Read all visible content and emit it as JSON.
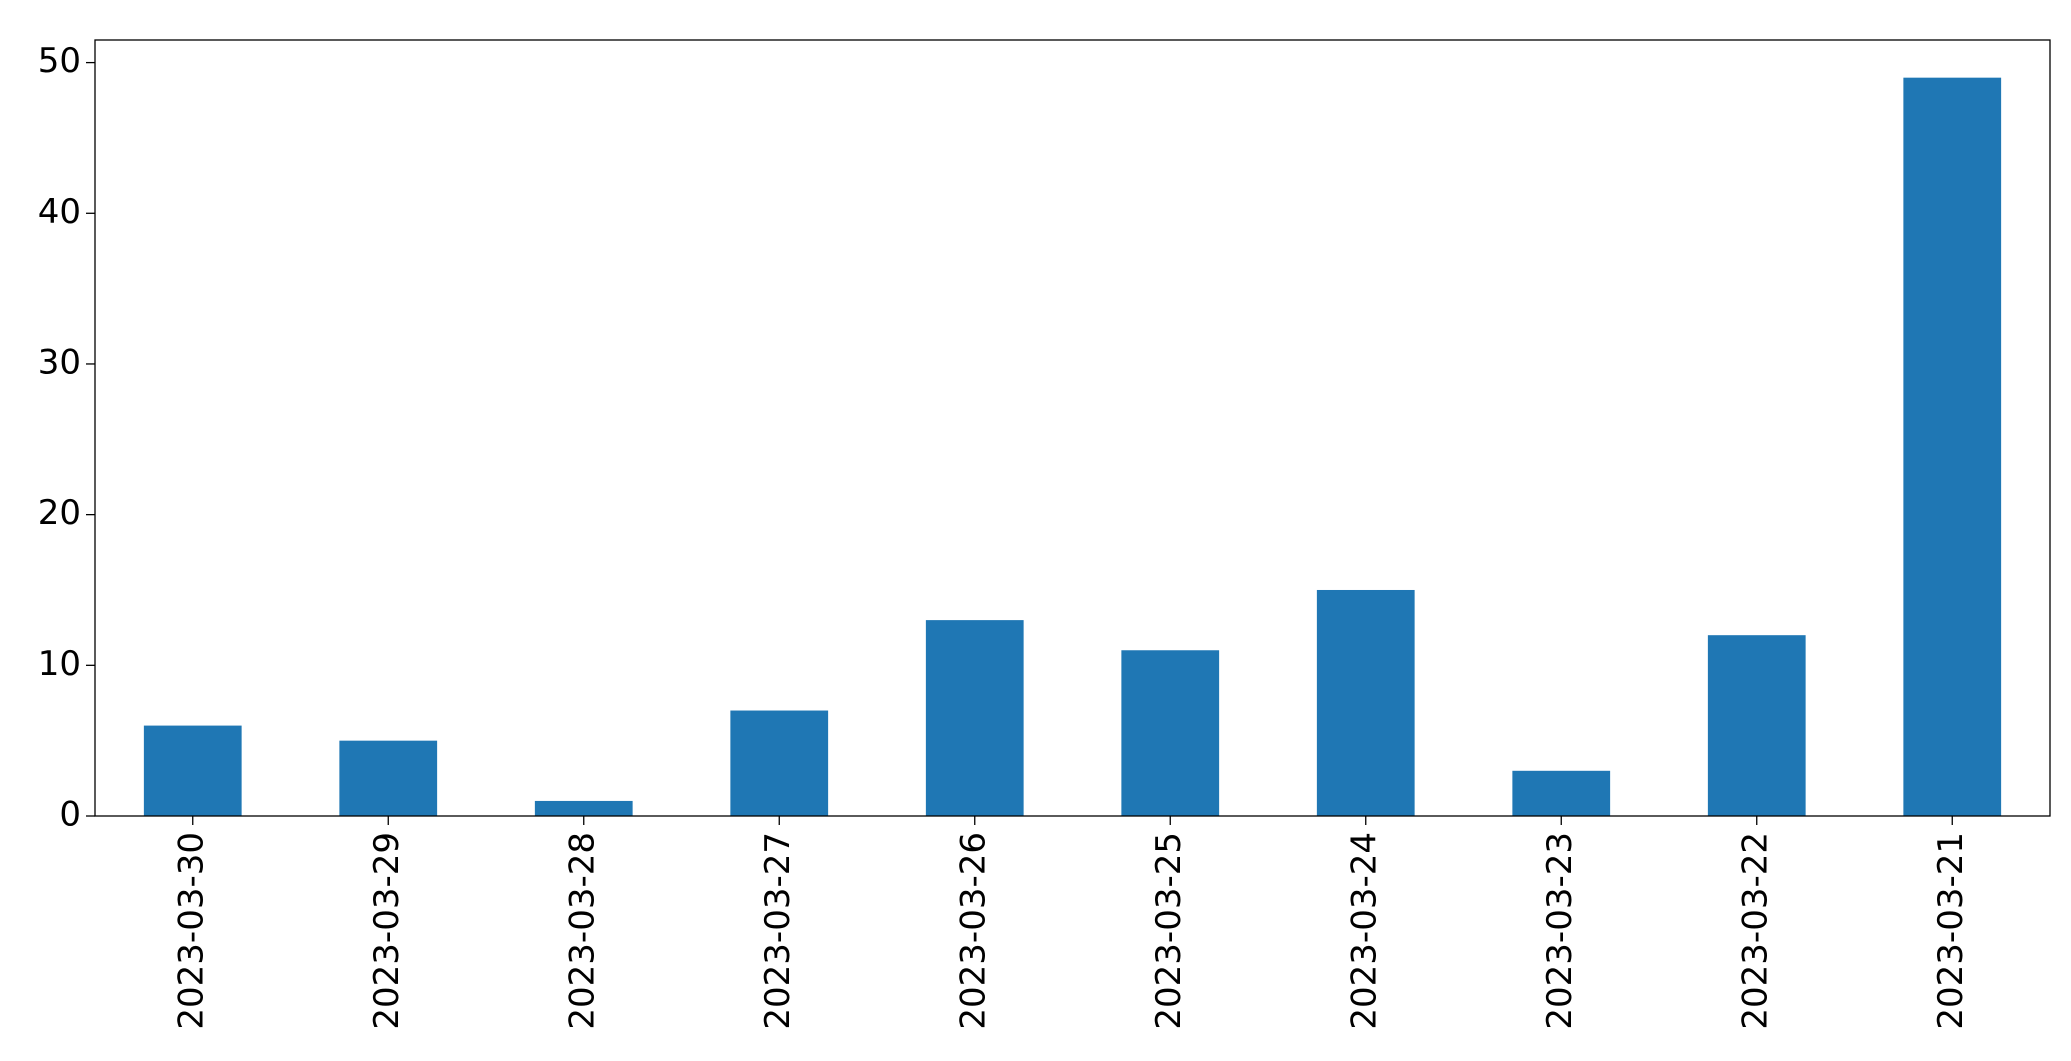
{
  "chart_data": {
    "type": "bar",
    "categories": [
      "2023-03-30",
      "2023-03-29",
      "2023-03-28",
      "2023-03-27",
      "2023-03-26",
      "2023-03-25",
      "2023-03-24",
      "2023-03-23",
      "2023-03-22",
      "2023-03-21"
    ],
    "values": [
      6,
      5,
      1,
      7,
      13,
      11,
      15,
      3,
      12,
      49
    ],
    "color": "#1f77b4",
    "ylim": [
      0,
      51.5
    ],
    "yticks": [
      0,
      10,
      20,
      30,
      40,
      50
    ],
    "grid": false
  }
}
